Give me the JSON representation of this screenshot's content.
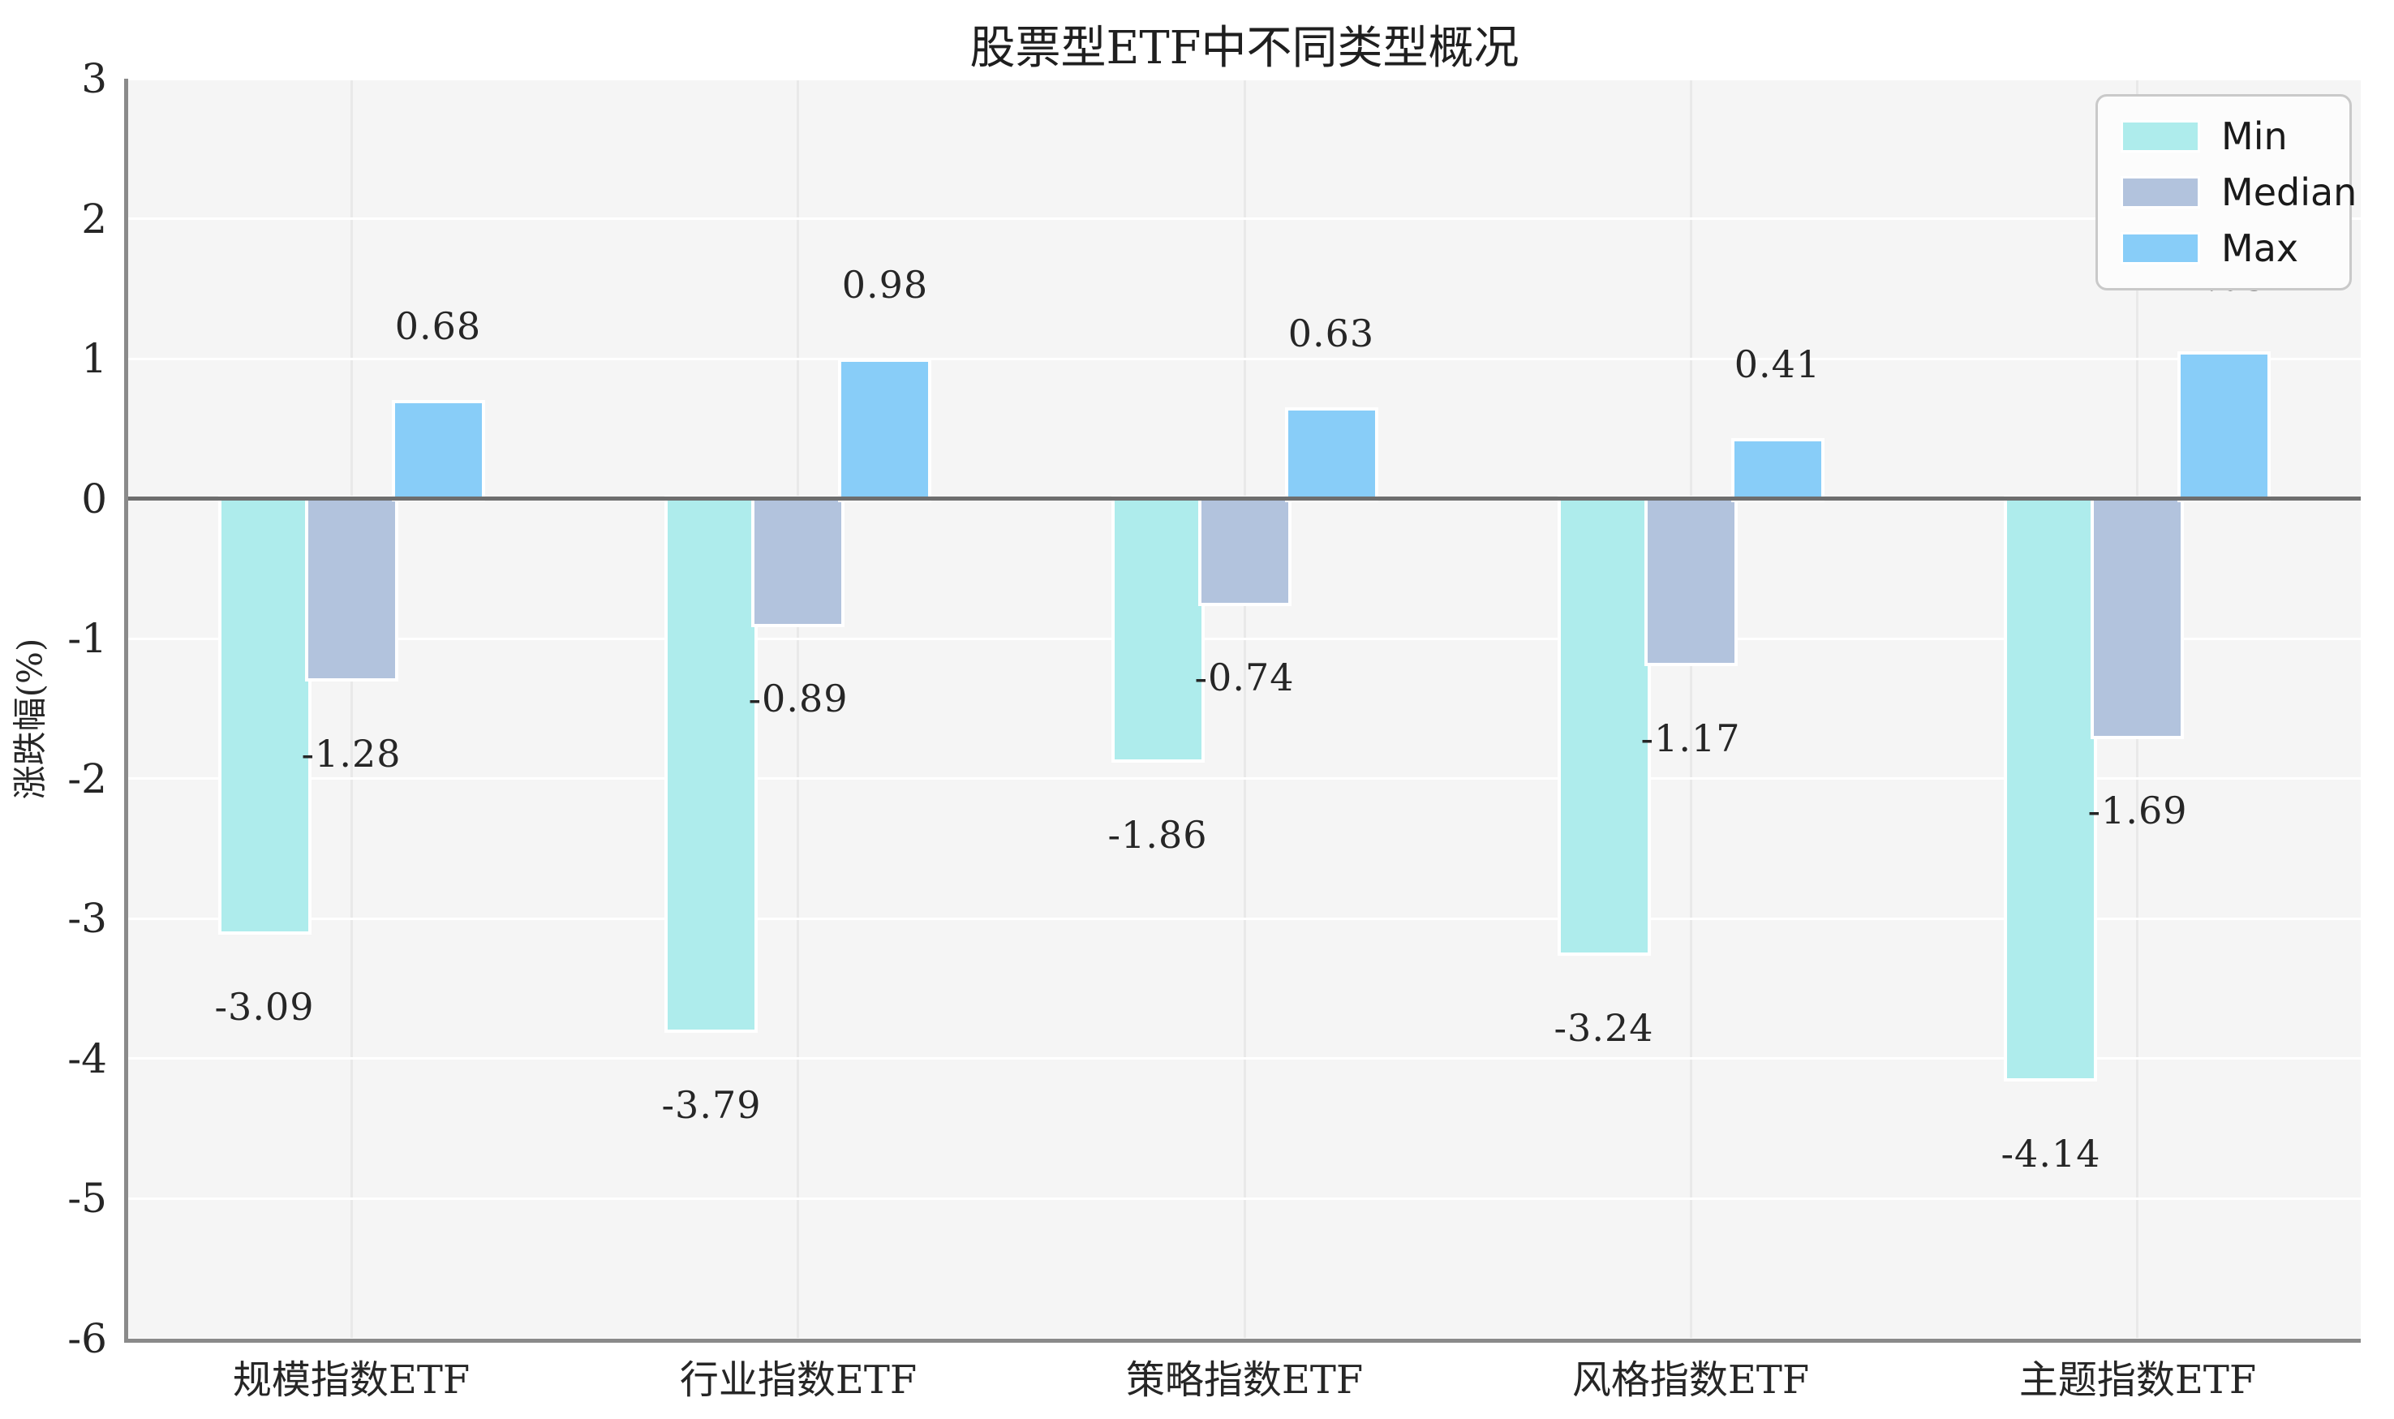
{
  "figure": {
    "title": "股票型ETF中不同类型概况",
    "background_color": "#ffffff",
    "plot_background_color": "#f5f5f5",
    "zero_line_color": "#6e6e6e",
    "spine_color": "#8a8a8a"
  },
  "chart_data": {
    "type": "bar",
    "title": "股票型ETF中不同类型概况",
    "xlabel": "",
    "ylabel": "涨跌幅(%)",
    "categories": [
      "规模指数ETF",
      "行业指数ETF",
      "策略指数ETF",
      "风格指数ETF",
      "主题指数ETF"
    ],
    "series": [
      {
        "name": "Min",
        "color": "#aeecec",
        "values": [
          -3.09,
          -3.79,
          -1.86,
          -3.24,
          -4.14
        ]
      },
      {
        "name": "Median",
        "color": "#b2c3dd",
        "values": [
          -1.28,
          -0.89,
          -0.74,
          -1.17,
          -1.69
        ]
      },
      {
        "name": "Max",
        "color": "#88cdf8",
        "values": [
          0.68,
          0.98,
          0.63,
          0.41,
          1.03
        ]
      }
    ],
    "bar_value_labels": [
      [
        "-3.09",
        "-1.28",
        "0.68"
      ],
      [
        "-3.79",
        "-0.89",
        "0.98"
      ],
      [
        "-1.86",
        "-0.74",
        "0.63"
      ],
      [
        "-3.24",
        "-1.17",
        "0.41"
      ],
      [
        "-4.14",
        "-1.69",
        "1.03"
      ]
    ],
    "ylim": [
      -6,
      3
    ],
    "yticks": [
      "3",
      "2",
      "1",
      "0",
      "-1",
      "-2",
      "-3",
      "-4",
      "-5",
      "-6"
    ],
    "grid": true,
    "legend_position": "upper right",
    "legend_entries": [
      "Min",
      "Median",
      "Max"
    ]
  }
}
